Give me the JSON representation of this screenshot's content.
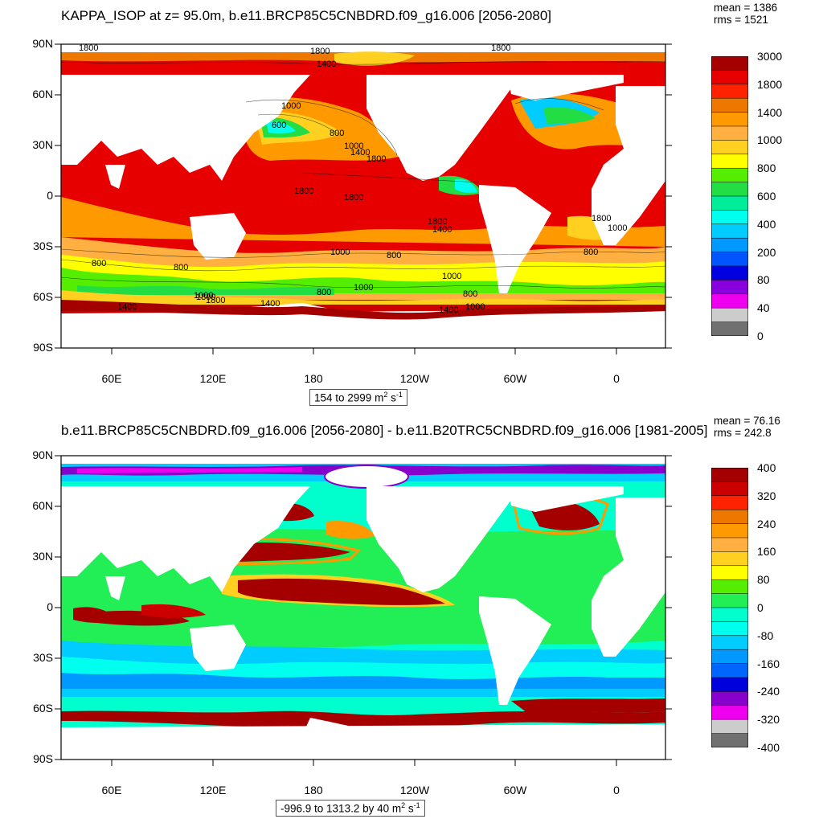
{
  "top": {
    "title": "KAPPA_ISOP at z=  95.0m, b.e11.BRCP85C5CNBDRD.f09_g16.006 [2056-2080]",
    "stat_mean": "mean = 1386",
    "stat_rms": "rms = 1521",
    "range_prefix": "154 to 2999 m",
    "range_exp1": "2",
    "range_mid": " s",
    "range_exp2": "-1",
    "colorbar": {
      "labels": [
        "3000",
        "1800",
        "1400",
        "1000",
        "800",
        "600",
        "400",
        "200",
        "80",
        "40",
        "0"
      ],
      "colors": [
        "#a50000",
        "#e60000",
        "#ff2200",
        "#ee7700",
        "#ff9900",
        "#ffb040",
        "#ffd020",
        "#ffff00",
        "#55ee00",
        "#22dd44",
        "#00ee99",
        "#00ffee",
        "#00ccff",
        "#0099ff",
        "#0055ff",
        "#0000e0",
        "#8800dd",
        "#ee00ee",
        "#cccccc",
        "#707070"
      ]
    },
    "contour_labels": [
      "1800",
      "1800",
      "1400",
      "1800",
      "1000",
      "600",
      "800",
      "1000",
      "1400",
      "1800",
      "1800",
      "1800",
      "1800",
      "1400",
      "1800",
      "1000",
      "800",
      "1000",
      "800",
      "800",
      "800",
      "1000",
      "1000",
      "800",
      "800",
      "1800",
      "1400",
      "1400",
      "1400",
      "1000",
      "1800",
      "1000"
    ]
  },
  "bottom": {
    "title": "b.e11.BRCP85C5CNBDRD.f09_g16.006 [2056-2080] - b.e11.B20TRC5CNBDRD.f09_g16.006 [1981-2005]",
    "stat_mean": "mean = 76.16",
    "stat_rms": "rms = 242.8",
    "range_prefix": "-996.9 to 1313.2 by 40 m",
    "range_exp1": "2",
    "range_mid": " s",
    "range_exp2": "-1",
    "colorbar": {
      "labels": [
        "400",
        "320",
        "240",
        "160",
        "80",
        "0",
        "-80",
        "-160",
        "-240",
        "-320",
        "-400"
      ],
      "colors": [
        "#a50000",
        "#cc0000",
        "#ff2200",
        "#ee7700",
        "#ff9900",
        "#ffb040",
        "#ffd020",
        "#ffff00",
        "#55ee00",
        "#22ee55",
        "#00ffcc",
        "#00ffee",
        "#00ccff",
        "#0099ff",
        "#0066ff",
        "#0000dd",
        "#8800cc",
        "#ee00ee",
        "#cccccc",
        "#707070"
      ]
    }
  },
  "axes": {
    "y_ticks": [
      "90N",
      "60N",
      "30N",
      "0",
      "30S",
      "60S",
      "90S"
    ],
    "x_ticks": [
      "60E",
      "120E",
      "180",
      "120W",
      "60W",
      "0"
    ]
  },
  "colors": {
    "land": "#ffffff",
    "frame": "#000000"
  }
}
